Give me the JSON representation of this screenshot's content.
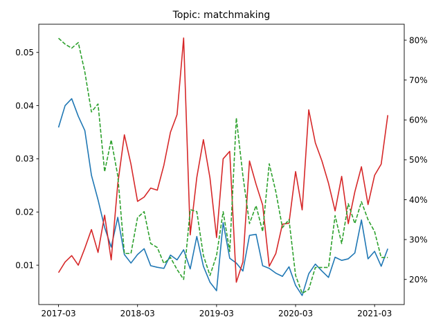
{
  "chart_data": {
    "type": "line",
    "title": "Topic: matchmaking",
    "xlabel": "",
    "ylabel": "",
    "y2label": "",
    "x_ticks": [
      "2017-03",
      "2018-03",
      "2019-03",
      "2020-03",
      "2021-03"
    ],
    "x_tick_positions": [
      0,
      12,
      24,
      36,
      48
    ],
    "xlim": [
      -3,
      52.5
    ],
    "ylim": [
      0.0026,
      0.0553
    ],
    "y_ticks": [
      0.01,
      0.02,
      0.03,
      0.04,
      0.05
    ],
    "y_tick_labels": [
      "0.01",
      "0.02",
      "0.03",
      "0.04",
      "0.05"
    ],
    "y2lim": [
      13.7,
      84.0
    ],
    "y2_ticks": [
      20,
      30,
      40,
      50,
      60,
      70,
      80
    ],
    "y2_tick_labels": [
      "20%",
      "30%",
      "40%",
      "50%",
      "60%",
      "70%",
      "80%"
    ],
    "grid": false,
    "x": [
      0,
      1,
      2,
      3,
      4,
      5,
      6,
      7,
      8,
      9,
      10,
      11,
      12,
      13,
      14,
      15,
      16,
      17,
      18,
      19,
      20,
      21,
      22,
      23,
      24,
      25,
      26,
      27,
      28,
      29,
      30,
      31,
      32,
      33,
      34,
      35,
      36,
      37,
      38,
      39,
      40,
      41,
      42,
      43,
      44,
      45,
      46,
      47,
      48,
      49,
      50
    ],
    "series": [
      {
        "axis": "left",
        "color": "#1f77b4",
        "style": "solid",
        "values": [
          0.0359,
          0.04,
          0.0413,
          0.038,
          0.0353,
          0.0269,
          0.0223,
          0.0171,
          0.0134,
          0.019,
          0.012,
          0.0104,
          0.012,
          0.0131,
          0.0099,
          0.0096,
          0.0094,
          0.0119,
          0.011,
          0.0129,
          0.0093,
          0.0154,
          0.0098,
          0.0068,
          0.0052,
          0.018,
          0.0113,
          0.0104,
          0.0089,
          0.0156,
          0.0158,
          0.0099,
          0.0094,
          0.0085,
          0.0079,
          0.0097,
          0.0062,
          0.0043,
          0.0084,
          0.0102,
          0.0089,
          0.0077,
          0.0115,
          0.0109,
          0.0112,
          0.0123,
          0.0185,
          0.0112,
          0.0126,
          0.0098,
          0.0131
        ]
      },
      {
        "axis": "left",
        "color": "#d62728",
        "style": "solid",
        "values": [
          0.0086,
          0.0106,
          0.0118,
          0.01,
          0.0132,
          0.0167,
          0.0124,
          0.0194,
          0.011,
          0.0253,
          0.0345,
          0.029,
          0.022,
          0.0228,
          0.0245,
          0.0241,
          0.0288,
          0.035,
          0.0383,
          0.0527,
          0.0157,
          0.0265,
          0.0336,
          0.0264,
          0.0152,
          0.03,
          0.0314,
          0.0068,
          0.0106,
          0.0296,
          0.0252,
          0.0213,
          0.0098,
          0.0122,
          0.0177,
          0.0179,
          0.0276,
          0.0204,
          0.0392,
          0.033,
          0.0296,
          0.0254,
          0.0202,
          0.0267,
          0.0178,
          0.0238,
          0.0285,
          0.0214,
          0.0269,
          0.029,
          0.0382
        ]
      },
      {
        "axis": "right",
        "color": "#2ca02c",
        "style": "dashed",
        "values": [
          80.5,
          79.0,
          78.0,
          79.4,
          72.0,
          62.0,
          64.0,
          47.0,
          55.0,
          46.0,
          26.5,
          26.5,
          35.5,
          37.0,
          29.0,
          28.0,
          24.0,
          25.5,
          22.5,
          20.0,
          37.5,
          37.0,
          26.0,
          21.0,
          26.0,
          37.0,
          27.0,
          60.5,
          46.0,
          34.0,
          38.5,
          32.0,
          49.0,
          42.0,
          33.0,
          35.0,
          21.0,
          16.5,
          17.5,
          23.0,
          23.0,
          23.0,
          36.0,
          29.0,
          39.0,
          34.0,
          39.5,
          35.0,
          32.0,
          25.5,
          25.5
        ]
      }
    ]
  }
}
